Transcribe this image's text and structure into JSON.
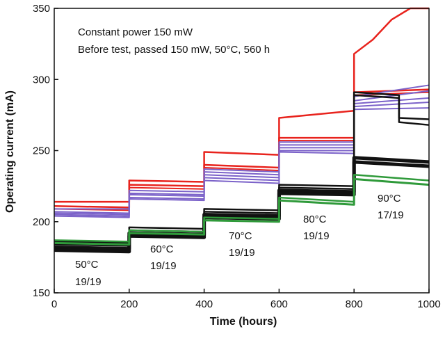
{
  "chart_data": {
    "type": "line",
    "title": "",
    "xlabel": "Time (hours)",
    "ylabel": "Operating current (mA)",
    "xlim": [
      0,
      1000
    ],
    "ylim": [
      150,
      350
    ],
    "x_ticks": [
      "0",
      "200",
      "400",
      "600",
      "800",
      "1000"
    ],
    "y_ticks": [
      "150",
      "200",
      "250",
      "300",
      "350"
    ],
    "grid": false,
    "legend": "none",
    "notes": [
      "Constant power 150 mW",
      "Before test, passed 150 mW, 50°C, 560 h"
    ],
    "stages": [
      {
        "temp": "50°C",
        "passed": "19/19",
        "x_range": [
          0,
          200
        ]
      },
      {
        "temp": "60°C",
        "passed": "19/19",
        "x_range": [
          200,
          400
        ]
      },
      {
        "temp": "70°C",
        "passed": "19/19",
        "x_range": [
          400,
          600
        ]
      },
      {
        "temp": "80°C",
        "passed": "19/19",
        "x_range": [
          600,
          800
        ]
      },
      {
        "temp": "90°C",
        "passed": "17/19",
        "x_range": [
          800,
          1000
        ]
      }
    ],
    "series": [
      {
        "color": "#e8231d",
        "width": 2.5,
        "x": [
          0,
          200,
          200,
          400,
          400,
          600,
          600,
          800,
          800,
          850,
          900,
          950,
          1000
        ],
        "y": [
          214,
          214,
          229,
          228,
          249,
          247,
          273,
          278,
          318,
          328,
          342,
          350,
          350
        ]
      },
      {
        "color": "#e8231d",
        "width": 2.5,
        "x": [
          0,
          200,
          200,
          400,
          400,
          600,
          600,
          800,
          800,
          1000
        ],
        "y": [
          211,
          210,
          226,
          225,
          240,
          238,
          259,
          259,
          291,
          293
        ]
      },
      {
        "color": "#e8231d",
        "width": 2,
        "x": [
          0,
          200,
          200,
          400,
          400,
          600,
          600,
          800,
          800,
          1000
        ],
        "y": [
          209,
          208,
          224,
          223,
          238,
          236,
          257,
          257,
          289,
          291
        ]
      },
      {
        "color": "#7b62c9",
        "width": 2,
        "x": [
          0,
          200,
          200,
          400,
          400,
          600,
          600,
          800,
          800,
          1000
        ],
        "y": [
          209,
          209,
          222,
          221,
          237,
          235,
          256,
          256,
          288,
          296
        ]
      },
      {
        "color": "#7b62c9",
        "width": 2,
        "x": [
          0,
          200,
          200,
          400,
          400,
          600,
          600,
          800,
          800,
          1000
        ],
        "y": [
          207,
          206,
          220,
          219,
          235,
          233,
          254,
          254,
          285,
          292
        ]
      },
      {
        "color": "#7b62c9",
        "width": 2,
        "x": [
          0,
          200,
          200,
          400,
          400,
          600,
          600,
          800,
          800,
          1000
        ],
        "y": [
          206,
          205,
          219,
          218,
          233,
          231,
          252,
          252,
          283,
          287
        ]
      },
      {
        "color": "#7b62c9",
        "width": 2,
        "x": [
          0,
          200,
          200,
          400,
          400,
          600,
          600,
          800,
          800,
          1000
        ],
        "y": [
          205,
          204,
          217,
          216,
          231,
          229,
          250,
          250,
          281,
          284
        ]
      },
      {
        "color": "#7b62c9",
        "width": 2,
        "x": [
          0,
          200,
          200,
          400,
          400,
          600,
          600,
          800,
          800,
          1000
        ],
        "y": [
          204,
          203,
          216,
          215,
          229,
          227,
          249,
          248,
          279,
          280
        ]
      },
      {
        "color": "#111111",
        "width": 2.5,
        "x": [
          0,
          200,
          200,
          400,
          400,
          600,
          600,
          800,
          800,
          920,
          920,
          1000
        ],
        "y": [
          186,
          185,
          196,
          195,
          209,
          208,
          226,
          225,
          291,
          289,
          273,
          272
        ]
      },
      {
        "color": "#111111",
        "width": 2.5,
        "x": [
          0,
          200,
          200,
          400,
          400,
          600,
          600,
          800,
          800,
          920,
          920,
          1000
        ],
        "y": [
          184,
          183,
          194,
          193,
          207,
          206,
          224,
          223,
          289,
          287,
          270,
          268
        ]
      },
      {
        "color": "#111111",
        "width": 5,
        "x": [
          0,
          200,
          200,
          400,
          400,
          600,
          600,
          800,
          800,
          1000
        ],
        "y": [
          182,
          181,
          192,
          191,
          205,
          204,
          222,
          221,
          245,
          242
        ]
      },
      {
        "color": "#111111",
        "width": 5,
        "x": [
          0,
          200,
          200,
          400,
          400,
          600,
          600,
          800,
          800,
          1000
        ],
        "y": [
          180,
          179,
          190,
          189,
          203,
          202,
          220,
          219,
          242,
          239
        ]
      },
      {
        "color": "#2f9a3a",
        "width": 2.5,
        "x": [
          0,
          200,
          200,
          400,
          400,
          600,
          600,
          800,
          800,
          1000
        ],
        "y": [
          187,
          186,
          194,
          193,
          203,
          202,
          217,
          214,
          233,
          229
        ]
      },
      {
        "color": "#2f9a3a",
        "width": 3,
        "x": [
          0,
          200,
          200,
          400,
          400,
          600,
          600,
          800,
          800,
          1000
        ],
        "y": [
          185,
          184,
          192,
          191,
          201,
          200,
          215,
          212,
          230,
          226
        ]
      }
    ]
  }
}
